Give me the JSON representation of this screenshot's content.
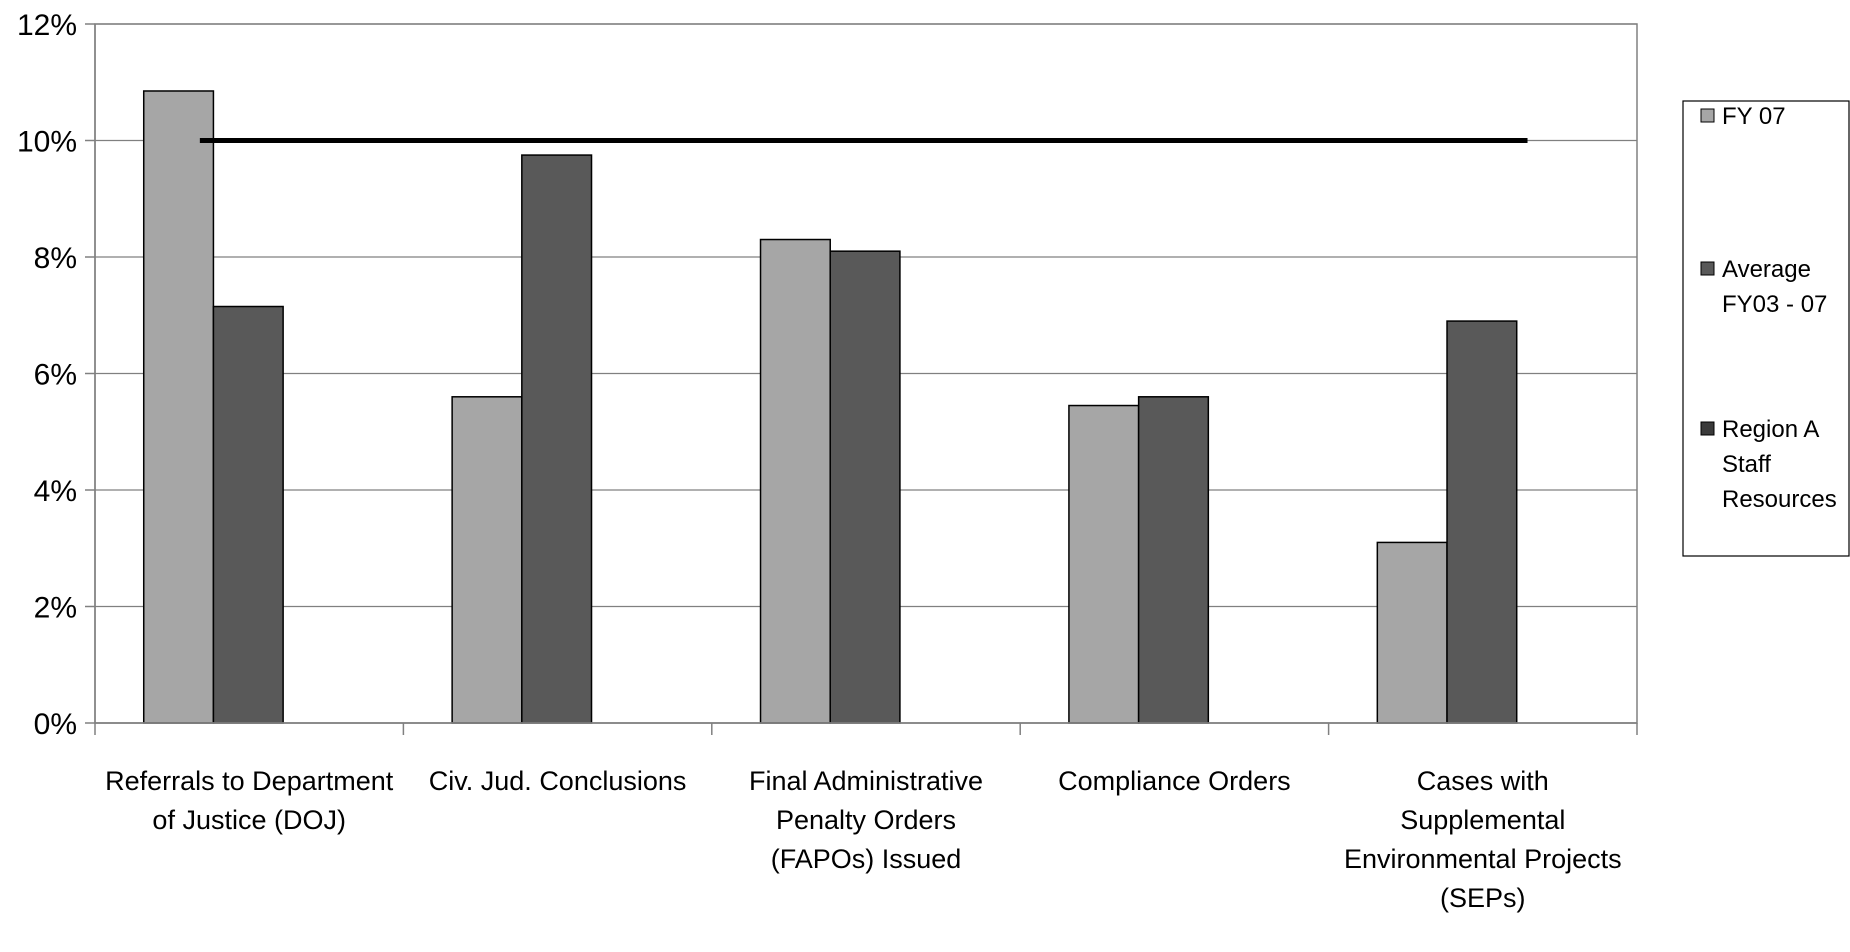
{
  "chart_data": {
    "type": "bar",
    "title": "",
    "xlabel": "",
    "ylabel": "",
    "ylim": [
      0,
      12
    ],
    "y_ticks": [
      "0%",
      "2%",
      "4%",
      "6%",
      "8%",
      "10%",
      "12%"
    ],
    "y_tick_values": [
      0,
      2,
      4,
      6,
      8,
      10,
      12
    ],
    "grid": true,
    "legend_position": "right",
    "categories": [
      [
        "Referrals to Department",
        "of Justice (DOJ)"
      ],
      [
        "Civ. Jud. Conclusions"
      ],
      [
        "Final Administrative",
        "Penalty Orders",
        "(FAPOs) Issued"
      ],
      [
        "Compliance Orders"
      ],
      [
        "Cases with",
        "Supplemental",
        "Environmental Projects",
        "(SEPs)"
      ]
    ],
    "series": [
      {
        "name": "FY 07",
        "legend_lines": [
          "FY 07"
        ],
        "type": "bar",
        "color": "#a6a6a6",
        "values": [
          10.85,
          5.6,
          8.3,
          5.45,
          3.1
        ]
      },
      {
        "name": "Average FY03 - 07",
        "legend_lines": [
          "Average",
          "FY03 - 07"
        ],
        "type": "bar",
        "color": "#595959",
        "values": [
          7.15,
          9.75,
          8.1,
          5.6,
          6.9
        ]
      },
      {
        "name": "Region A Staff Resources",
        "legend_lines": [
          "Region A",
          "Staff",
          "Resources"
        ],
        "type": "line",
        "color": "#000000",
        "value": 10.0
      }
    ]
  }
}
